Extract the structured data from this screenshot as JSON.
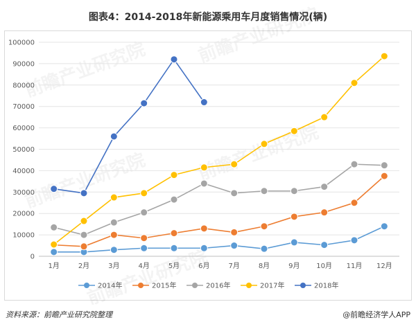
{
  "title": "图表4：2014-2018年新能源乘用车月度销售情况(辆)",
  "footer": {
    "source": "资料来源：前瞻产业研究院整理",
    "brand": "@前瞻经济学人APP"
  },
  "watermark_text": "前瞻产业研究院",
  "chart_data": {
    "type": "line",
    "title": "图表4：2014-2018年新能源乘用车月度销售情况(辆)",
    "xlabel": "",
    "ylabel": "",
    "ylim": [
      0,
      100000
    ],
    "yticks": [
      0,
      10000,
      20000,
      30000,
      40000,
      50000,
      60000,
      70000,
      80000,
      90000,
      100000
    ],
    "grid": true,
    "legend_position": "bottom",
    "categories": [
      "1月",
      "2月",
      "3月",
      "4月",
      "5月",
      "6月",
      "7月",
      "8月",
      "9月",
      "10月",
      "11月",
      "12月"
    ],
    "series": [
      {
        "name": "2014年",
        "color": "#5b9bd5",
        "values": [
          2000,
          2000,
          3000,
          3800,
          3800,
          3800,
          5000,
          3500,
          6500,
          5300,
          7500,
          14000
        ]
      },
      {
        "name": "2015年",
        "color": "#ed7d31",
        "values": [
          5300,
          4600,
          10000,
          8500,
          10800,
          13000,
          11200,
          14000,
          18500,
          20500,
          25000,
          37500
        ]
      },
      {
        "name": "2016年",
        "color": "#a5a5a5",
        "values": [
          13500,
          10000,
          15800,
          20500,
          26500,
          34000,
          29500,
          30500,
          30500,
          32500,
          43000,
          42500
        ]
      },
      {
        "name": "2017年",
        "color": "#ffc000",
        "values": [
          5500,
          16500,
          27500,
          29500,
          38000,
          41500,
          43000,
          52500,
          58500,
          65000,
          81000,
          93500
        ]
      },
      {
        "name": "2018年",
        "color": "#4472c4",
        "values": [
          31500,
          29500,
          56000,
          71500,
          92000,
          72000,
          null,
          null,
          null,
          null,
          null,
          null
        ]
      }
    ]
  }
}
